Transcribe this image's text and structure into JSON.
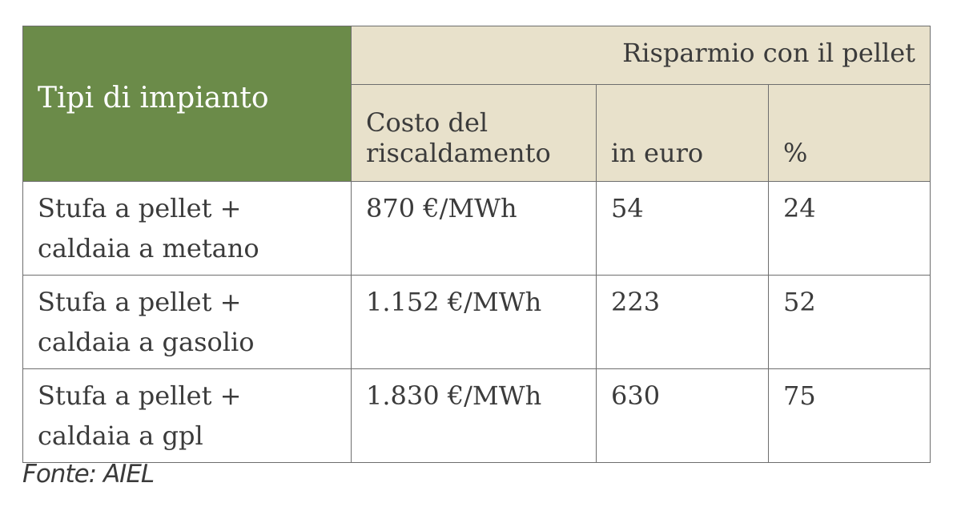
{
  "table": {
    "header": {
      "type_label": "Tipi di impianto",
      "group_label": "Risparmio con il pellet",
      "cost_label_line1": "Costo del",
      "cost_label_line2": "riscaldamento",
      "euro_label": "in euro",
      "percent_label": "%"
    },
    "rows": [
      {
        "type_line1": "Stufa a pellet +",
        "type_line2": "caldaia a metano",
        "cost": "870 €/MWh",
        "euro": "54",
        "percent": "24"
      },
      {
        "type_line1": "Stufa a pellet +",
        "type_line2": "caldaia a gasolio",
        "cost": "1.152 €/MWh",
        "euro": "223",
        "percent": "52"
      },
      {
        "type_line1": "Stufa a pellet +",
        "type_line2": "caldaia a gpl",
        "cost": "1.830 €/MWh",
        "euro": "630",
        "percent": "75"
      }
    ]
  },
  "source": "Fonte: AIEL",
  "colors": {
    "header_green": "#6b8b49",
    "header_beige": "#e8e1cb",
    "text": "#3b3b3b",
    "border": "#6e6e6e"
  }
}
